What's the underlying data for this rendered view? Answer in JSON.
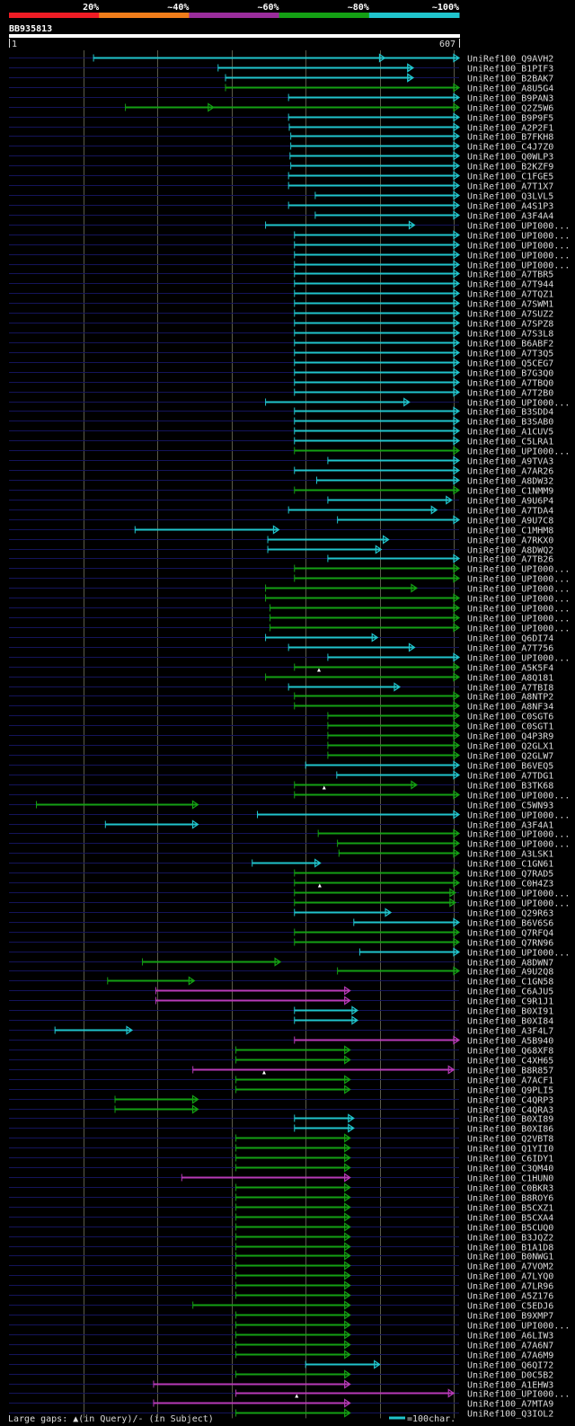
{
  "chart_data": {
    "type": "alignment-overview",
    "query": {
      "name": "BB935813",
      "start_label": "1",
      "end_label": "607",
      "length": 607
    },
    "identity_legend": [
      {
        "label": "20%",
        "color": "#ee1c25"
      },
      {
        "label": "~40%",
        "color": "#f07d1a"
      },
      {
        "label": "~60%",
        "color": "#9a2d9c"
      },
      {
        "label": "~80%",
        "color": "#14a014"
      },
      {
        "label": "~100%",
        "color": "#20c4cc"
      }
    ],
    "colors": {
      "cyan": "#20c4cc",
      "green": "#14a014",
      "magenta": "#b83ab8",
      "navy": "#14145a",
      "grid": "#5a5a4a"
    },
    "gridlines": [
      100,
      200,
      300,
      400,
      500,
      600
    ],
    "hits": [
      {
        "label": "UniRef100_Q9AVH2",
        "start": 114,
        "end": 607,
        "color": "cyan",
        "arrow_at": 507
      },
      {
        "label": "UniRef100_B1PIF3",
        "start": 282,
        "end": 545,
        "color": "cyan",
        "arrow_at": 545
      },
      {
        "label": "UniRef100_B2BAK7",
        "start": 292,
        "end": 545,
        "color": "cyan",
        "arrow_at": 545
      },
      {
        "label": "UniRef100_A8U5G4",
        "start": 292,
        "end": 607,
        "color": "green"
      },
      {
        "label": "UniRef100_B9PAN3",
        "start": 377,
        "end": 607,
        "color": "cyan"
      },
      {
        "label": "UniRef100_Q2Z5W6",
        "start": 157,
        "end": 607,
        "color": "green",
        "arrow_at": 276
      },
      {
        "label": "UniRef100_B9P9F5",
        "start": 377,
        "end": 607,
        "color": "cyan"
      },
      {
        "label": "UniRef100_A2P2F1",
        "start": 378,
        "end": 607,
        "color": "cyan"
      },
      {
        "label": "UniRef100_B7FKH8",
        "start": 380,
        "end": 607,
        "color": "cyan"
      },
      {
        "label": "UniRef100_C4J7Z0",
        "start": 380,
        "end": 607,
        "color": "cyan"
      },
      {
        "label": "UniRef100_Q0WLP3",
        "start": 379,
        "end": 607,
        "color": "cyan"
      },
      {
        "label": "UniRef100_B2KZF9",
        "start": 380,
        "end": 607,
        "color": "cyan"
      },
      {
        "label": "UniRef100_C1FGE5",
        "start": 377,
        "end": 607,
        "color": "cyan"
      },
      {
        "label": "UniRef100_A7T1X7",
        "start": 377,
        "end": 607,
        "color": "cyan"
      },
      {
        "label": "UniRef100_Q3LVL5",
        "start": 413,
        "end": 607,
        "color": "cyan"
      },
      {
        "label": "UniRef100_A4S1P3",
        "start": 377,
        "end": 607,
        "color": "cyan"
      },
      {
        "label": "UniRef100_A3F4A4",
        "start": 413,
        "end": 607,
        "color": "cyan"
      },
      {
        "label": "UniRef100_UPI000...",
        "start": 346,
        "end": 547,
        "color": "cyan"
      },
      {
        "label": "UniRef100_UPI000...",
        "start": 385,
        "end": 607,
        "color": "cyan"
      },
      {
        "label": "UniRef100_UPI000...",
        "start": 385,
        "end": 607,
        "color": "cyan"
      },
      {
        "label": "UniRef100_UPI000...",
        "start": 385,
        "end": 607,
        "color": "cyan"
      },
      {
        "label": "UniRef100_UPI000...",
        "start": 385,
        "end": 607,
        "color": "cyan"
      },
      {
        "label": "UniRef100_A7TBR5",
        "start": 385,
        "end": 607,
        "color": "cyan"
      },
      {
        "label": "UniRef100_A7T944",
        "start": 385,
        "end": 607,
        "color": "cyan"
      },
      {
        "label": "UniRef100_A7TQZ1",
        "start": 385,
        "end": 607,
        "color": "cyan"
      },
      {
        "label": "UniRef100_A7SWM1",
        "start": 385,
        "end": 607,
        "color": "cyan"
      },
      {
        "label": "UniRef100_A7SUZ2",
        "start": 385,
        "end": 607,
        "color": "cyan"
      },
      {
        "label": "UniRef100_A7SPZ8",
        "start": 385,
        "end": 607,
        "color": "cyan"
      },
      {
        "label": "UniRef100_A7S3L8",
        "start": 385,
        "end": 607,
        "color": "cyan"
      },
      {
        "label": "UniRef100_B6ABF2",
        "start": 385,
        "end": 607,
        "color": "cyan"
      },
      {
        "label": "UniRef100_A7T3Q5",
        "start": 385,
        "end": 607,
        "color": "cyan"
      },
      {
        "label": "UniRef100_Q5CEG7",
        "start": 385,
        "end": 607,
        "color": "cyan"
      },
      {
        "label": "UniRef100_B7G3Q0",
        "start": 385,
        "end": 607,
        "color": "cyan"
      },
      {
        "label": "UniRef100_A7TBQ0",
        "start": 385,
        "end": 607,
        "color": "cyan"
      },
      {
        "label": "UniRef100_A7T2B0",
        "start": 385,
        "end": 607,
        "color": "cyan"
      },
      {
        "label": "UniRef100_UPI000...",
        "start": 346,
        "end": 540,
        "color": "cyan"
      },
      {
        "label": "UniRef100_B3SDD4",
        "start": 385,
        "end": 607,
        "color": "cyan"
      },
      {
        "label": "UniRef100_B3SAB0",
        "start": 385,
        "end": 607,
        "color": "cyan"
      },
      {
        "label": "UniRef100_A1CUV5",
        "start": 385,
        "end": 607,
        "color": "cyan"
      },
      {
        "label": "UniRef100_C5LRA1",
        "start": 385,
        "end": 607,
        "color": "cyan"
      },
      {
        "label": "UniRef100_UPI000...",
        "start": 385,
        "end": 607,
        "color": "green"
      },
      {
        "label": "UniRef100_A9TVA3",
        "start": 430,
        "end": 607,
        "color": "cyan"
      },
      {
        "label": "UniRef100_A7AR26",
        "start": 385,
        "end": 607,
        "color": "cyan"
      },
      {
        "label": "UniRef100_A8DW32",
        "start": 415,
        "end": 607,
        "color": "cyan"
      },
      {
        "label": "UniRef100_C1NMM9",
        "start": 385,
        "end": 607,
        "color": "green"
      },
      {
        "label": "UniRef100_A9U6P4",
        "start": 430,
        "end": 597,
        "color": "cyan"
      },
      {
        "label": "UniRef100_A7TDA4",
        "start": 377,
        "end": 577,
        "color": "cyan"
      },
      {
        "label": "UniRef100_A9U7C8",
        "start": 443,
        "end": 607,
        "color": "cyan"
      },
      {
        "label": "UniRef100_C1MHM8",
        "start": 170,
        "end": 364,
        "color": "cyan"
      },
      {
        "label": "UniRef100_A7RKX0",
        "start": 349,
        "end": 512,
        "color": "cyan"
      },
      {
        "label": "UniRef100_A8DWQ2",
        "start": 349,
        "end": 502,
        "color": "cyan"
      },
      {
        "label": "UniRef100_A7TB26",
        "start": 430,
        "end": 607,
        "color": "cyan"
      },
      {
        "label": "UniRef100_UPI000...",
        "start": 385,
        "end": 607,
        "color": "green"
      },
      {
        "label": "UniRef100_UPI000...",
        "start": 385,
        "end": 607,
        "color": "green"
      },
      {
        "label": "UniRef100_UPI000...",
        "start": 346,
        "end": 550,
        "color": "green"
      },
      {
        "label": "UniRef100_UPI000...",
        "start": 346,
        "end": 607,
        "color": "green"
      },
      {
        "label": "UniRef100_UPI000...",
        "start": 352,
        "end": 607,
        "color": "green"
      },
      {
        "label": "UniRef100_UPI000...",
        "start": 352,
        "end": 607,
        "color": "green"
      },
      {
        "label": "UniRef100_UPI000...",
        "start": 352,
        "end": 607,
        "color": "green"
      },
      {
        "label": "UniRef100_Q6DI74",
        "start": 346,
        "end": 497,
        "color": "cyan"
      },
      {
        "label": "UniRef100_A7T756",
        "start": 377,
        "end": 547,
        "color": "cyan"
      },
      {
        "label": "UniRef100_UPI000...",
        "start": 430,
        "end": 607,
        "color": "cyan"
      },
      {
        "label": "UniRef100_A5K5F4",
        "start": 385,
        "end": 607,
        "color": "green",
        "gap_at": 418
      },
      {
        "label": "UniRef100_A8Q181",
        "start": 346,
        "end": 607,
        "color": "green"
      },
      {
        "label": "UniRef100_A7TBI8",
        "start": 377,
        "end": 527,
        "color": "cyan"
      },
      {
        "label": "UniRef100_A8NTP2",
        "start": 385,
        "end": 607,
        "color": "green"
      },
      {
        "label": "UniRef100_A8NF34",
        "start": 385,
        "end": 607,
        "color": "green"
      },
      {
        "label": "UniRef100_C0SGT6",
        "start": 430,
        "end": 607,
        "color": "green"
      },
      {
        "label": "UniRef100_C0SGT1",
        "start": 430,
        "end": 607,
        "color": "green"
      },
      {
        "label": "UniRef100_Q4P3R9",
        "start": 430,
        "end": 607,
        "color": "green"
      },
      {
        "label": "UniRef100_Q2GLX1",
        "start": 430,
        "end": 607,
        "color": "green"
      },
      {
        "label": "UniRef100_Q2GLW7",
        "start": 430,
        "end": 607,
        "color": "green"
      },
      {
        "label": "UniRef100_B6VEQ5",
        "start": 400,
        "end": 607,
        "color": "cyan"
      },
      {
        "label": "UniRef100_A7TDG1",
        "start": 442,
        "end": 607,
        "color": "cyan"
      },
      {
        "label": "UniRef100_B3TK68",
        "start": 385,
        "end": 550,
        "color": "green",
        "gap_at": 425
      },
      {
        "label": "UniRef100_UPI000...",
        "start": 385,
        "end": 607,
        "color": "green"
      },
      {
        "label": "UniRef100_C5WN93",
        "start": 37,
        "end": 255,
        "color": "green"
      },
      {
        "label": "UniRef100_UPI000...",
        "start": 335,
        "end": 607,
        "color": "cyan"
      },
      {
        "label": "UniRef100_A3F4A1",
        "start": 130,
        "end": 255,
        "color": "cyan"
      },
      {
        "label": "UniRef100_UPI000...",
        "start": 417,
        "end": 607,
        "color": "green"
      },
      {
        "label": "UniRef100_UPI000...",
        "start": 443,
        "end": 607,
        "color": "green"
      },
      {
        "label": "UniRef100_A3LSK1",
        "start": 445,
        "end": 607,
        "color": "green"
      },
      {
        "label": "UniRef100_C1GN61",
        "start": 328,
        "end": 420,
        "color": "cyan"
      },
      {
        "label": "UniRef100_Q7RAD5",
        "start": 385,
        "end": 607,
        "color": "green"
      },
      {
        "label": "UniRef100_C0H4Z3",
        "start": 385,
        "end": 607,
        "color": "green",
        "gap_at": 419
      },
      {
        "label": "UniRef100_UPI000...",
        "start": 385,
        "end": 602,
        "color": "green"
      },
      {
        "label": "UniRef100_UPI000...",
        "start": 385,
        "end": 602,
        "color": "green"
      },
      {
        "label": "UniRef100_Q29R63",
        "start": 385,
        "end": 515,
        "color": "cyan"
      },
      {
        "label": "UniRef100_B6V6S6",
        "start": 465,
        "end": 607,
        "color": "cyan"
      },
      {
        "label": "UniRef100_Q7RFQ4",
        "start": 385,
        "end": 607,
        "color": "green"
      },
      {
        "label": "UniRef100_Q7RN96",
        "start": 385,
        "end": 607,
        "color": "green"
      },
      {
        "label": "UniRef100_UPI000...",
        "start": 473,
        "end": 607,
        "color": "cyan"
      },
      {
        "label": "UniRef100_A8DWN7",
        "start": 180,
        "end": 366,
        "color": "green"
      },
      {
        "label": "UniRef100_A9U2Q8",
        "start": 443,
        "end": 607,
        "color": "green"
      },
      {
        "label": "UniRef100_C1GN58",
        "start": 133,
        "end": 250,
        "color": "green"
      },
      {
        "label": "UniRef100_C6AJU5",
        "start": 198,
        "end": 460,
        "color": "magenta"
      },
      {
        "label": "UniRef100_C9R1J1",
        "start": 198,
        "end": 460,
        "color": "magenta"
      },
      {
        "label": "UniRef100_B0XI91",
        "start": 385,
        "end": 470,
        "color": "cyan"
      },
      {
        "label": "UniRef100_B0XI84",
        "start": 385,
        "end": 470,
        "color": "cyan"
      },
      {
        "label": "UniRef100_A3F4L7",
        "start": 62,
        "end": 166,
        "color": "cyan"
      },
      {
        "label": "UniRef100_A5B940",
        "start": 385,
        "end": 607,
        "color": "magenta"
      },
      {
        "label": "UniRef100_Q68XF8",
        "start": 306,
        "end": 460,
        "color": "green"
      },
      {
        "label": "UniRef100_C4XH65",
        "start": 306,
        "end": 460,
        "color": "green"
      },
      {
        "label": "UniRef100_B8R857",
        "start": 248,
        "end": 600,
        "color": "magenta",
        "gap_at": 344
      },
      {
        "label": "UniRef100_A7ACF1",
        "start": 306,
        "end": 460,
        "color": "green"
      },
      {
        "label": "UniRef100_Q9PLI5",
        "start": 306,
        "end": 460,
        "color": "green"
      },
      {
        "label": "UniRef100_C4QRP3",
        "start": 143,
        "end": 255,
        "color": "green"
      },
      {
        "label": "UniRef100_C4QRA3",
        "start": 143,
        "end": 255,
        "color": "green"
      },
      {
        "label": "UniRef100_B0XI89",
        "start": 385,
        "end": 465,
        "color": "cyan"
      },
      {
        "label": "UniRef100_B0XI86",
        "start": 385,
        "end": 465,
        "color": "cyan"
      },
      {
        "label": "UniRef100_Q2VBT8",
        "start": 306,
        "end": 460,
        "color": "green"
      },
      {
        "label": "UniRef100_Q1YII0",
        "start": 306,
        "end": 460,
        "color": "green"
      },
      {
        "label": "UniRef100_C6IDY1",
        "start": 306,
        "end": 460,
        "color": "green"
      },
      {
        "label": "UniRef100_C3QM40",
        "start": 306,
        "end": 460,
        "color": "green"
      },
      {
        "label": "UniRef100_C1HUN0",
        "start": 233,
        "end": 460,
        "color": "magenta"
      },
      {
        "label": "UniRef100_C0BKR3",
        "start": 306,
        "end": 460,
        "color": "green"
      },
      {
        "label": "UniRef100_B8ROY6",
        "start": 306,
        "end": 460,
        "color": "green"
      },
      {
        "label": "UniRef100_B5CXZ1",
        "start": 306,
        "end": 460,
        "color": "green"
      },
      {
        "label": "UniRef100_B5CXA4",
        "start": 306,
        "end": 460,
        "color": "green"
      },
      {
        "label": "UniRef100_B5CUQ0",
        "start": 306,
        "end": 460,
        "color": "green"
      },
      {
        "label": "UniRef100_B3JQZ2",
        "start": 306,
        "end": 460,
        "color": "green"
      },
      {
        "label": "UniRef100_B1A1D8",
        "start": 306,
        "end": 460,
        "color": "green"
      },
      {
        "label": "UniRef100_B0NWG1",
        "start": 306,
        "end": 460,
        "color": "green"
      },
      {
        "label": "UniRef100_A7VOM2",
        "start": 306,
        "end": 460,
        "color": "green"
      },
      {
        "label": "UniRef100_A7LYQ0",
        "start": 306,
        "end": 460,
        "color": "green"
      },
      {
        "label": "UniRef100_A7LR96",
        "start": 306,
        "end": 460,
        "color": "green"
      },
      {
        "label": "UniRef100_A5Z176",
        "start": 306,
        "end": 460,
        "color": "green"
      },
      {
        "label": "UniRef100_C5EDJ6",
        "start": 248,
        "end": 460,
        "color": "green"
      },
      {
        "label": "UniRef100_B9XMP7",
        "start": 306,
        "end": 460,
        "color": "green"
      },
      {
        "label": "UniRef100_UPI000...",
        "start": 306,
        "end": 460,
        "color": "green"
      },
      {
        "label": "UniRef100_A6LIW3",
        "start": 306,
        "end": 460,
        "color": "green"
      },
      {
        "label": "UniRef100_A7A6N7",
        "start": 306,
        "end": 460,
        "color": "green"
      },
      {
        "label": "UniRef100_A7A6M9",
        "start": 306,
        "end": 460,
        "color": "green"
      },
      {
        "label": "UniRef100_Q6QI72",
        "start": 400,
        "end": 500,
        "color": "cyan"
      },
      {
        "label": "UniRef100_D0C5B2",
        "start": 306,
        "end": 460,
        "color": "green"
      },
      {
        "label": "UniRef100_A1EHW3",
        "start": 195,
        "end": 460,
        "color": "magenta"
      },
      {
        "label": "UniRef100_UPI000...",
        "start": 306,
        "end": 600,
        "color": "magenta",
        "gap_at": 388
      },
      {
        "label": "UniRef100_A7MTA9",
        "start": 195,
        "end": 460,
        "color": "magenta"
      },
      {
        "label": "UniRef100_Q3IOL2",
        "start": 306,
        "end": 460,
        "color": "green"
      }
    ],
    "footer": {
      "gaps_text": "Large gaps: ▲(in Query)/- (in Subject)",
      "scale_text": "=100char."
    }
  }
}
